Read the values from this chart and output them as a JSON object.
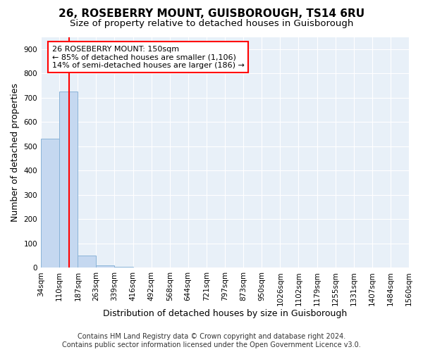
{
  "title": "26, ROSEBERRY MOUNT, GUISBOROUGH, TS14 6RU",
  "subtitle": "Size of property relative to detached houses in Guisborough",
  "xlabel": "Distribution of detached houses by size in Guisborough",
  "ylabel": "Number of detached properties",
  "footer_line1": "Contains HM Land Registry data © Crown copyright and database right 2024.",
  "footer_line2": "Contains public sector information licensed under the Open Government Licence v3.0.",
  "bin_edges": [
    34,
    110,
    187,
    263,
    339,
    416,
    492,
    568,
    644,
    721,
    797,
    873,
    950,
    1026,
    1102,
    1179,
    1255,
    1331,
    1407,
    1484,
    1560
  ],
  "bin_counts": [
    530,
    726,
    50,
    10,
    5,
    0,
    0,
    0,
    0,
    0,
    0,
    0,
    0,
    0,
    0,
    0,
    0,
    0,
    0,
    0
  ],
  "bar_color": "#c5d8f0",
  "bar_edge_color": "#8ab4d8",
  "property_size": 150,
  "annotation_line1": "26 ROSEBERRY MOUNT: 150sqm",
  "annotation_line2": "← 85% of detached houses are smaller (1,106)",
  "annotation_line3": "14% of semi-detached houses are larger (186) →",
  "annotation_box_color": "white",
  "annotation_box_edge_color": "red",
  "vline_color": "red",
  "ylim": [
    0,
    950
  ],
  "yticks": [
    0,
    100,
    200,
    300,
    400,
    500,
    600,
    700,
    800,
    900
  ],
  "fig_bg_color": "#ffffff",
  "plot_bg_color": "#e8f0f8",
  "grid_color": "#ffffff",
  "title_fontsize": 11,
  "subtitle_fontsize": 9.5,
  "label_fontsize": 9,
  "tick_fontsize": 7.5,
  "footer_fontsize": 7
}
